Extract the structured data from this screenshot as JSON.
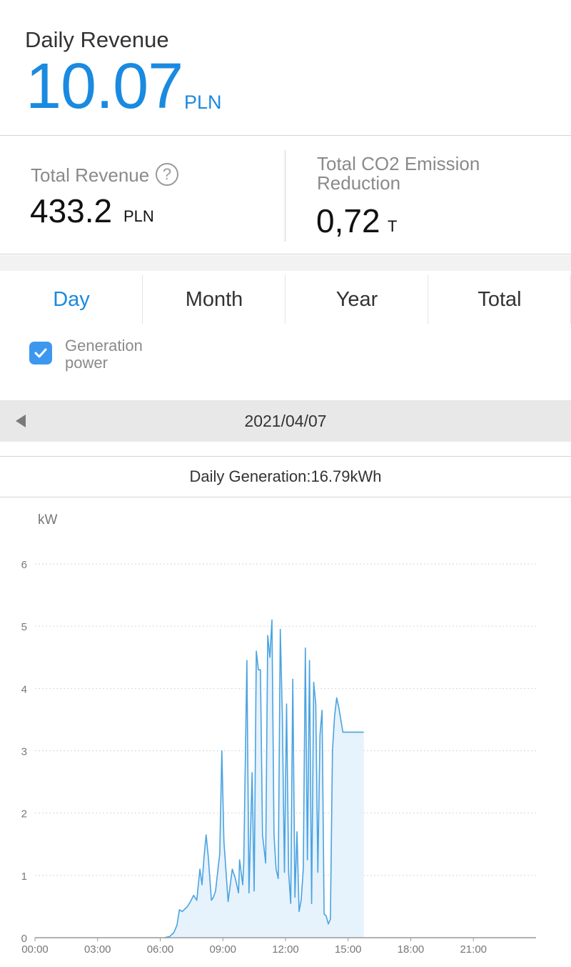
{
  "daily": {
    "label": "Daily Revenue",
    "value": "10.07",
    "unit": "PLN"
  },
  "totals": {
    "revenue_label": "Total Revenue",
    "revenue_value": "433.2",
    "revenue_unit": "PLN",
    "help_glyph": "?",
    "co2_label": "Total CO2 Emission Reduction",
    "co2_value": "0,72",
    "co2_unit": "T"
  },
  "tabs": [
    {
      "label": "Day",
      "active": true
    },
    {
      "label": "Month",
      "active": false
    },
    {
      "label": "Year",
      "active": false
    },
    {
      "label": "Total",
      "active": false
    }
  ],
  "legend": {
    "label": "Generation power",
    "checked": true,
    "color": "#3d97ef"
  },
  "date": {
    "value": "2021/04/07"
  },
  "generation": {
    "text": "Daily Generation:16.79kWh"
  },
  "colors": {
    "accent": "#1a8ae0",
    "line": "#4aa3e0",
    "fill": "#e6f2fc"
  },
  "icons": {
    "help": "question-circle-icon",
    "prev": "caret-left-icon",
    "check": "check-icon"
  },
  "chart_data": {
    "type": "area",
    "ylabel": "kW",
    "xlabel": "",
    "ylim": [
      0,
      6
    ],
    "yticks": [
      "0",
      "1",
      "2",
      "3",
      "4",
      "5",
      "6"
    ],
    "xlim": [
      0,
      24
    ],
    "xticks": [
      {
        "h": 0,
        "label": "00:00"
      },
      {
        "h": 3,
        "label": "03:00"
      },
      {
        "h": 6,
        "label": "06:00"
      },
      {
        "h": 9,
        "label": "09:00"
      },
      {
        "h": 12,
        "label": "12:00"
      },
      {
        "h": 15,
        "label": "15:00"
      },
      {
        "h": 18,
        "label": "18:00"
      },
      {
        "h": 21,
        "label": "21:00"
      }
    ],
    "grid": true,
    "series": [
      {
        "x": [
          6.2,
          6.45,
          6.65,
          6.8,
          6.92,
          7.05,
          7.15,
          7.3,
          7.45,
          7.6,
          7.75,
          7.9,
          8.0,
          8.1,
          8.2,
          8.3,
          8.45,
          8.55,
          8.65,
          8.75,
          8.85,
          8.95,
          9.05,
          9.25,
          9.45,
          9.6,
          9.75,
          9.8,
          9.95,
          10.0,
          10.15,
          10.25,
          10.4,
          10.5,
          10.6,
          10.7,
          10.8,
          10.9,
          11.05,
          11.15,
          11.25,
          11.35,
          11.45,
          11.55,
          11.65,
          11.75,
          11.85,
          11.95,
          12.05,
          12.15,
          12.25,
          12.35,
          12.45,
          12.55,
          12.65,
          12.75,
          12.85,
          12.95,
          13.05,
          13.15,
          13.25,
          13.35,
          13.45,
          13.55,
          13.65,
          13.75,
          13.85,
          13.95,
          14.05,
          14.15,
          14.25,
          14.35,
          14.45,
          14.55,
          14.65,
          14.75,
          14.85,
          14.95,
          15.05,
          15.15,
          15.25,
          15.35,
          15.45,
          15.55,
          15.65,
          15.75
        ],
        "y": [
          0.0,
          0.02,
          0.08,
          0.2,
          0.45,
          0.42,
          0.45,
          0.5,
          0.58,
          0.68,
          0.6,
          1.1,
          0.85,
          1.3,
          1.65,
          1.3,
          0.6,
          0.65,
          0.75,
          1.05,
          1.35,
          3.0,
          1.55,
          0.58,
          1.1,
          0.95,
          0.72,
          1.25,
          0.85,
          1.2,
          4.45,
          0.72,
          2.65,
          0.75,
          4.6,
          4.3,
          4.3,
          1.65,
          1.2,
          4.85,
          4.5,
          5.1,
          1.65,
          1.1,
          0.95,
          4.95,
          3.55,
          1.05,
          3.75,
          1.05,
          0.55,
          4.15,
          0.65,
          1.7,
          0.42,
          0.6,
          1.1,
          4.65,
          1.25,
          4.45,
          0.55,
          4.1,
          3.75,
          1.05,
          3.25,
          3.65,
          0.38,
          0.35,
          0.22,
          0.3,
          3.0,
          3.55,
          3.85,
          3.7,
          3.5,
          3.3,
          3.3,
          3.3,
          3.3,
          3.3,
          3.3,
          3.3,
          3.3,
          3.3,
          3.3,
          3.3
        ]
      }
    ]
  }
}
